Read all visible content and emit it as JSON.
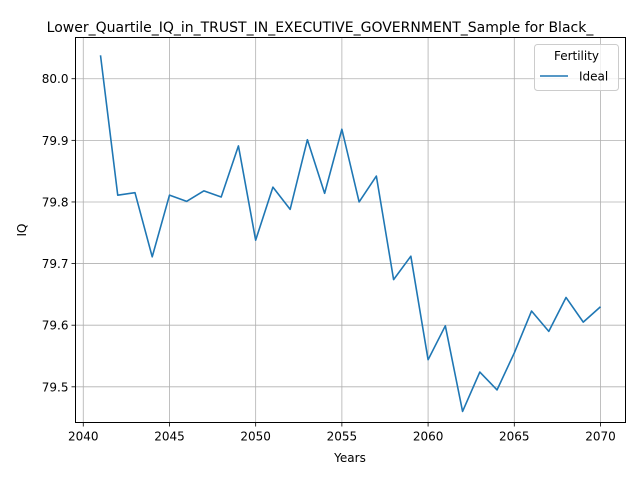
{
  "chart_data": {
    "type": "line",
    "title": "Lower_Quartile_IQ_in_TRUST_IN_EXECUTIVE_GOVERNMENT_Sample for Black_",
    "xlabel": "Years",
    "ylabel": "IQ",
    "xlim": [
      2039.55,
      2071.45
    ],
    "ylim": [
      79.4421,
      80.0669
    ],
    "xticks": [
      2040,
      2045,
      2050,
      2055,
      2060,
      2065,
      2070
    ],
    "yticks": [
      79.5,
      79.6,
      79.7,
      79.8,
      79.9,
      80.0
    ],
    "xtick_labels": [
      "2040",
      "2045",
      "2050",
      "2055",
      "2060",
      "2065",
      "2070"
    ],
    "ytick_labels": [
      "79.5",
      "79.6",
      "79.7",
      "79.8",
      "79.9",
      "80.0"
    ],
    "grid": true,
    "legend": {
      "title": "Fertility",
      "placement": "top-right"
    },
    "series": [
      {
        "name": "Ideal",
        "color": "#1f77b4",
        "x": [
          2041,
          2042,
          2043,
          2044,
          2045,
          2046,
          2047,
          2048,
          2049,
          2050,
          2051,
          2052,
          2053,
          2054,
          2055,
          2056,
          2057,
          2058,
          2059,
          2060,
          2061,
          2062,
          2063,
          2064,
          2065,
          2066,
          2067,
          2068,
          2069,
          2070
        ],
        "y": [
          80.038,
          79.811,
          79.815,
          79.711,
          79.811,
          79.801,
          79.818,
          79.808,
          79.891,
          79.738,
          79.824,
          79.788,
          79.901,
          79.814,
          79.918,
          79.8,
          79.842,
          79.674,
          79.712,
          79.544,
          79.599,
          79.46,
          79.524,
          79.495,
          79.555,
          79.623,
          79.59,
          79.645,
          79.605,
          79.63
        ]
      }
    ]
  }
}
